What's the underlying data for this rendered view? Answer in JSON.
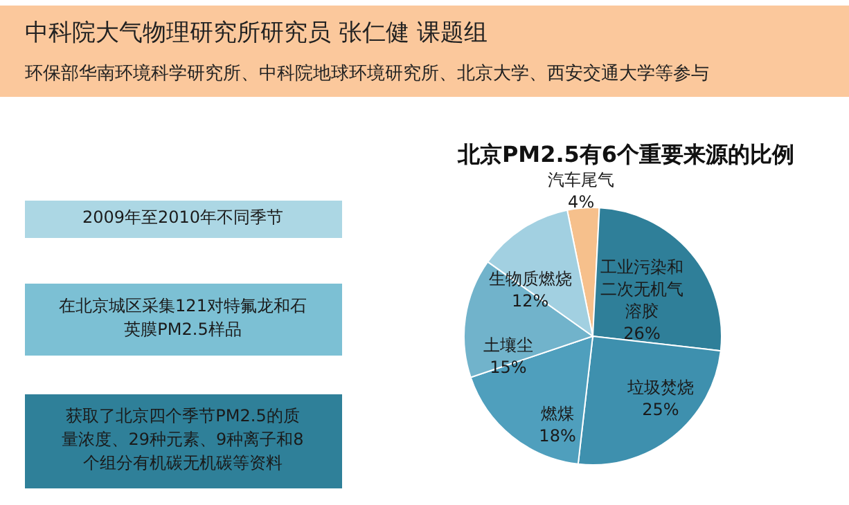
{
  "chart_data": {
    "type": "pie",
    "title": "北京PM2.5有6个重要来源的比例",
    "categories": [
      "汽车尾气",
      "工业污染和二次无机气溶胶",
      "垃圾焚烧",
      "燃煤",
      "土壤尘",
      "生物质燃烧"
    ],
    "values": [
      4,
      26,
      25,
      18,
      15,
      12
    ],
    "value_labels": [
      "4%",
      "26%",
      "25%",
      "18%",
      "15%",
      "12%"
    ],
    "colors": [
      "#f6c08c",
      "#2f7f99",
      "#3e90ae",
      "#4f9fbd",
      "#71b3cb",
      "#a2d0e1"
    ],
    "annotations": [
      "中科院大气物理研究所研究员 张仁健 课题组",
      "环保部华南环境科学研究所、中科院地球环境研究所、北京大学、西安交通大学等参与",
      "2009年至2010年不同季节",
      "在北京城区采集121对特氟龙和石英膜PM2.5样品",
      "获取了北京四个季节PM2.5的质量浓度、29种元素、9种离子和8个组分有机碳无机碳等资料"
    ]
  }
}
